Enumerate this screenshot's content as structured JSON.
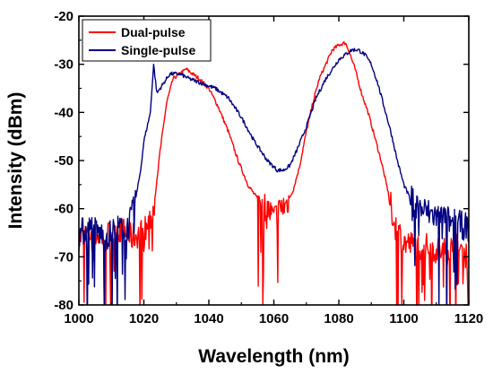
{
  "chart_data": {
    "type": "line",
    "title": "",
    "xlabel": "Wavelength (nm)",
    "ylabel": "Intensity (dBm)",
    "xlim": [
      1000,
      1120
    ],
    "ylim": [
      -80,
      -20
    ],
    "xticks": [
      1000,
      1020,
      1040,
      1060,
      1080,
      1100,
      1120
    ],
    "yticks": [
      -80,
      -70,
      -60,
      -50,
      -40,
      -30,
      -20
    ],
    "grid": false,
    "legend_position": "top-left",
    "series": [
      {
        "name": "Dual-pulse",
        "color": "#ff0000",
        "x": [
          1000,
          1004,
          1008,
          1012,
          1016,
          1019,
          1021,
          1023,
          1025,
          1027,
          1029,
          1031,
          1033,
          1035,
          1037,
          1040,
          1043,
          1046,
          1049,
          1052,
          1055,
          1058,
          1060,
          1062,
          1064,
          1066,
          1068,
          1070,
          1072,
          1074,
          1076,
          1078,
          1080,
          1082,
          1083,
          1085,
          1087,
          1089,
          1091,
          1093,
          1095,
          1097,
          1100,
          1104,
          1108,
          1112,
          1116,
          1120
        ],
        "y": [
          -66,
          -65,
          -66,
          -64,
          -66,
          -65,
          -64,
          -60,
          -48,
          -38,
          -33,
          -32,
          -31,
          -32,
          -33,
          -35,
          -39,
          -44,
          -50,
          -55,
          -58,
          -60,
          -62,
          -60,
          -59,
          -56,
          -51,
          -44,
          -38,
          -33,
          -30,
          -27,
          -26,
          -25.5,
          -27,
          -31,
          -36,
          -40,
          -45,
          -50,
          -56,
          -63,
          -67,
          -68,
          -68,
          -69,
          -68,
          -70
        ]
      },
      {
        "name": "Single-pulse",
        "color": "#000080",
        "x": [
          1000,
          1004,
          1008,
          1012,
          1015,
          1017,
          1019,
          1020,
          1022,
          1023,
          1024,
          1026,
          1028,
          1031,
          1034,
          1038,
          1042,
          1046,
          1050,
          1054,
          1058,
          1061,
          1063,
          1065,
          1067,
          1070,
          1073,
          1076,
          1078,
          1080,
          1082,
          1084,
          1086,
          1088,
          1090,
          1092,
          1094,
          1096,
          1098,
          1100,
          1102,
          1105,
          1108,
          1112,
          1116,
          1120
        ],
        "y": [
          -65,
          -64,
          -66,
          -64,
          -64,
          -60,
          -52,
          -46,
          -40,
          -30,
          -36,
          -34,
          -32,
          -32,
          -33,
          -34,
          -35,
          -37,
          -41,
          -46,
          -50,
          -52,
          -52,
          -51,
          -48,
          -43,
          -37,
          -33,
          -31,
          -29,
          -28,
          -27,
          -27,
          -28,
          -30,
          -34,
          -39,
          -44,
          -50,
          -55,
          -58,
          -60,
          -61,
          -62,
          -63,
          -64
        ]
      }
    ]
  }
}
